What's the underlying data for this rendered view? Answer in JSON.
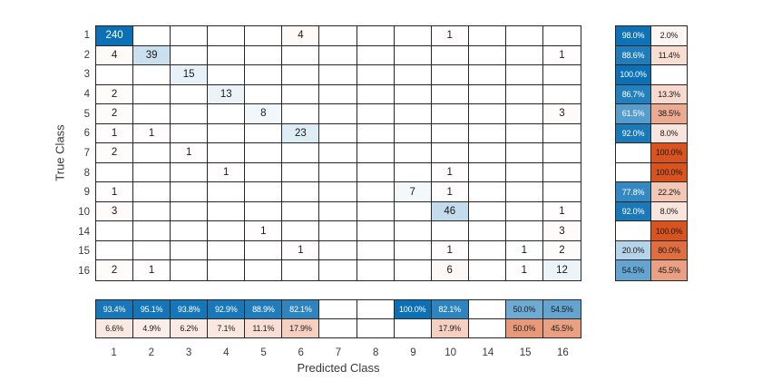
{
  "chart_data": {
    "type": "heatmap",
    "subtype": "confusion-matrix",
    "title": "",
    "xlabel": "Predicted Class",
    "ylabel": "True Class",
    "classes": [
      "1",
      "2",
      "3",
      "4",
      "5",
      "6",
      "7",
      "8",
      "9",
      "10",
      "14",
      "15",
      "16"
    ],
    "matrix": [
      [
        240,
        null,
        null,
        null,
        null,
        4,
        null,
        null,
        null,
        1,
        null,
        null,
        null
      ],
      [
        4,
        39,
        null,
        null,
        null,
        null,
        null,
        null,
        null,
        null,
        null,
        null,
        1
      ],
      [
        null,
        null,
        15,
        null,
        null,
        null,
        null,
        null,
        null,
        null,
        null,
        null,
        null
      ],
      [
        2,
        null,
        null,
        13,
        null,
        null,
        null,
        null,
        null,
        null,
        null,
        null,
        null
      ],
      [
        2,
        null,
        null,
        null,
        8,
        null,
        null,
        null,
        null,
        null,
        null,
        null,
        3
      ],
      [
        1,
        1,
        null,
        null,
        null,
        23,
        null,
        null,
        null,
        null,
        null,
        null,
        null
      ],
      [
        2,
        null,
        1,
        null,
        null,
        null,
        null,
        null,
        null,
        null,
        null,
        null,
        null
      ],
      [
        null,
        null,
        null,
        1,
        null,
        null,
        null,
        null,
        null,
        1,
        null,
        null,
        null
      ],
      [
        1,
        null,
        null,
        null,
        null,
        null,
        null,
        null,
        7,
        1,
        null,
        null,
        null
      ],
      [
        3,
        null,
        null,
        null,
        null,
        null,
        null,
        null,
        null,
        46,
        null,
        null,
        1
      ],
      [
        null,
        null,
        null,
        null,
        1,
        null,
        null,
        null,
        null,
        null,
        null,
        null,
        3
      ],
      [
        null,
        null,
        null,
        null,
        null,
        1,
        null,
        null,
        null,
        1,
        null,
        1,
        2
      ],
      [
        2,
        1,
        null,
        null,
        null,
        null,
        null,
        null,
        null,
        6,
        null,
        1,
        12
      ]
    ],
    "row_summary": {
      "correct_pct": [
        98.0,
        88.6,
        100.0,
        86.7,
        61.5,
        92.0,
        null,
        null,
        77.8,
        92.0,
        null,
        20.0,
        54.5
      ],
      "incorrect_pct": [
        2.0,
        11.4,
        null,
        13.3,
        38.5,
        8.0,
        100.0,
        100.0,
        22.2,
        8.0,
        100.0,
        80.0,
        45.5
      ]
    },
    "column_summary": {
      "correct_pct": [
        93.4,
        95.1,
        93.8,
        92.9,
        88.9,
        82.1,
        null,
        null,
        100.0,
        82.1,
        null,
        50.0,
        54.5
      ],
      "incorrect_pct": [
        6.6,
        4.9,
        6.2,
        7.1,
        11.1,
        17.9,
        null,
        null,
        null,
        17.9,
        null,
        50.0,
        45.5
      ]
    },
    "legend_position": "none",
    "grid": "cell-borders"
  },
  "colors": {
    "diagonal_blue": "#0b70b5",
    "off_diagonal_orange": "#d9531e",
    "grid_line": "#262626",
    "background": "#ffffff",
    "dark_text": "#1a1a1a",
    "light_text": "#ffffff",
    "tick_text": "#3a3a3a"
  }
}
